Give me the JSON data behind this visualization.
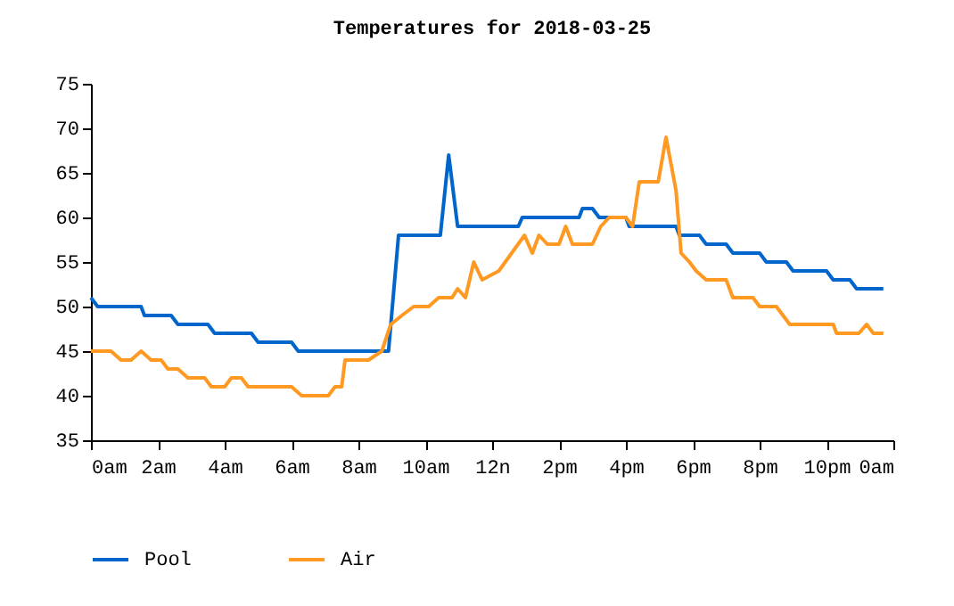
{
  "chart_data": {
    "type": "line",
    "title": "Temperatures for 2018-03-25",
    "legend": "bottom left",
    "grid": false,
    "xlim": [
      "2018-03-25T00:00",
      "2018-03-26T00:00"
    ],
    "xticks": [
      {
        "value": "2018-03-25T00:00",
        "label": "0am"
      },
      {
        "value": "2018-03-25T02:00",
        "label": "2am"
      },
      {
        "value": "2018-03-25T04:00",
        "label": "4am"
      },
      {
        "value": "2018-03-25T06:00",
        "label": "6am"
      },
      {
        "value": "2018-03-25T08:00",
        "label": "8am"
      },
      {
        "value": "2018-03-25T10:00",
        "label": "10am"
      },
      {
        "value": "2018-03-25T12:00",
        "label": "12n"
      },
      {
        "value": "2018-03-25T14:00",
        "label": "2pm"
      },
      {
        "value": "2018-03-25T16:00",
        "label": "4pm"
      },
      {
        "value": "2018-03-25T18:00",
        "label": "6pm"
      },
      {
        "value": "2018-03-25T20:00",
        "label": "8pm"
      },
      {
        "value": "2018-03-25T22:00",
        "label": "10pm"
      },
      {
        "value": "2018-03-26T00:00",
        "label": "0am"
      }
    ],
    "ylim": [
      35,
      75
    ],
    "yticks": [
      35,
      40,
      45,
      50,
      55,
      60,
      65,
      70,
      75
    ],
    "series": [
      {
        "name": "Pool",
        "color": "#0066cc",
        "x": [
          "2018-03-25T00:00",
          "2018-03-25T00:12",
          "2018-03-25T01:30",
          "2018-03-25T01:36",
          "2018-03-25T02:24",
          "2018-03-25T02:36",
          "2018-03-25T03:30",
          "2018-03-25T03:42",
          "2018-03-25T04:48",
          "2018-03-25T05:00",
          "2018-03-25T06:00",
          "2018-03-25T06:12",
          "2018-03-25T08:54",
          "2018-03-25T09:12",
          "2018-03-25T10:27",
          "2018-03-25T10:42",
          "2018-03-25T10:58",
          "2018-03-25T12:47",
          "2018-03-25T12:54",
          "2018-03-25T14:36",
          "2018-03-25T14:42",
          "2018-03-25T15:00",
          "2018-03-25T15:12",
          "2018-03-25T16:00",
          "2018-03-25T16:06",
          "2018-03-25T17:30",
          "2018-03-25T17:36",
          "2018-03-25T18:12",
          "2018-03-25T18:24",
          "2018-03-25T19:00",
          "2018-03-25T19:12",
          "2018-03-25T20:00",
          "2018-03-25T20:12",
          "2018-03-25T20:48",
          "2018-03-25T21:00",
          "2018-03-25T22:00",
          "2018-03-25T22:12",
          "2018-03-25T22:42",
          "2018-03-25T22:54",
          "2018-03-25T23:42"
        ],
        "values": [
          51,
          50,
          50,
          49,
          49,
          48,
          48,
          47,
          47,
          46,
          46,
          45,
          45,
          58,
          58,
          67,
          59,
          59,
          60,
          60,
          61,
          61,
          60,
          60,
          59,
          59,
          58,
          58,
          57,
          57,
          56,
          56,
          55,
          55,
          54,
          54,
          53,
          53,
          52,
          52
        ]
      },
      {
        "name": "Air",
        "color": "#ff9922",
        "x": [
          "2018-03-25T00:00",
          "2018-03-25T00:36",
          "2018-03-25T00:54",
          "2018-03-25T01:12",
          "2018-03-25T01:30",
          "2018-03-25T01:48",
          "2018-03-25T02:06",
          "2018-03-25T02:18",
          "2018-03-25T02:36",
          "2018-03-25T02:54",
          "2018-03-25T03:24",
          "2018-03-25T03:36",
          "2018-03-25T04:00",
          "2018-03-25T04:12",
          "2018-03-25T04:30",
          "2018-03-25T04:42",
          "2018-03-25T06:00",
          "2018-03-25T06:18",
          "2018-03-25T07:06",
          "2018-03-25T07:18",
          "2018-03-25T07:30",
          "2018-03-25T07:36",
          "2018-03-25T08:18",
          "2018-03-25T08:42",
          "2018-03-25T08:58",
          "2018-03-25T09:18",
          "2018-03-25T09:39",
          "2018-03-25T10:06",
          "2018-03-25T10:24",
          "2018-03-25T10:48",
          "2018-03-25T10:58",
          "2018-03-25T11:12",
          "2018-03-25T11:27",
          "2018-03-25T11:42",
          "2018-03-25T12:12",
          "2018-03-25T12:58",
          "2018-03-25T13:12",
          "2018-03-25T13:24",
          "2018-03-25T13:39",
          "2018-03-25T14:00",
          "2018-03-25T14:12",
          "2018-03-25T14:24",
          "2018-03-25T15:00",
          "2018-03-25T15:15",
          "2018-03-25T15:30",
          "2018-03-25T16:00",
          "2018-03-25T16:12",
          "2018-03-25T16:24",
          "2018-03-25T16:58",
          "2018-03-25T17:12",
          "2018-03-25T17:30",
          "2018-03-25T17:39",
          "2018-03-25T17:54",
          "2018-03-25T18:06",
          "2018-03-25T18:24",
          "2018-03-25T19:00",
          "2018-03-25T19:12",
          "2018-03-25T19:48",
          "2018-03-25T20:00",
          "2018-03-25T20:30",
          "2018-03-25T20:42",
          "2018-03-25T20:54",
          "2018-03-25T22:12",
          "2018-03-25T22:18",
          "2018-03-25T22:58",
          "2018-03-25T23:12",
          "2018-03-25T23:24",
          "2018-03-25T23:42"
        ],
        "values": [
          45,
          45,
          44,
          44,
          45,
          44,
          44,
          43,
          43,
          42,
          42,
          41,
          41,
          42,
          42,
          41,
          41,
          40,
          40,
          41,
          41,
          44,
          44,
          45,
          48,
          49,
          50,
          50,
          51,
          51,
          52,
          51,
          55,
          53,
          54,
          58,
          56,
          58,
          57,
          57,
          59,
          57,
          57,
          59,
          60,
          60,
          59,
          64,
          64,
          69,
          63,
          56,
          55,
          54,
          53,
          53,
          51,
          51,
          50,
          50,
          49,
          48,
          48,
          47,
          47,
          48,
          47,
          47
        ]
      }
    ]
  }
}
